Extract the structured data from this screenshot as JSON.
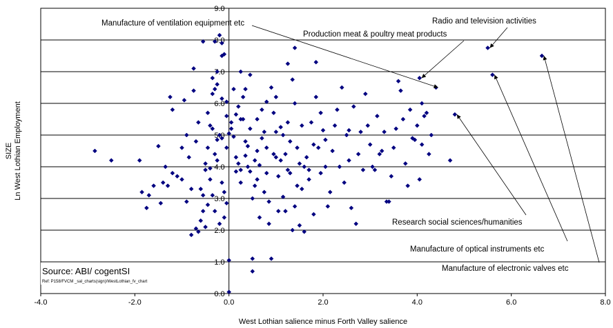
{
  "chart_data": {
    "type": "scatter",
    "title": "",
    "xlabel": "West Lothian salience minus Forth Valley salience",
    "ylabel_lines": [
      "SIZE",
      "Ln West Lothian Employment"
    ],
    "xlim": [
      -4,
      8
    ],
    "ylim": [
      0,
      9
    ],
    "x_ticks": [
      -4,
      -2,
      0,
      2,
      4,
      6,
      8
    ],
    "x_tick_labels": [
      "-4.0",
      "-2.0",
      "0.0",
      "2.0",
      "4.0",
      "6.0",
      "8.0"
    ],
    "y_ticks": [
      0,
      1,
      2,
      3,
      4,
      5,
      6,
      7,
      8,
      9
    ],
    "y_tick_labels": [
      "0.0",
      "1.0",
      "2.0",
      "3.0",
      "4.0",
      "5.0",
      "6.0",
      "7.0",
      "8.0",
      "9.0"
    ],
    "grid": {
      "horizontal": true,
      "vertical": false
    },
    "marker_color": "#000080",
    "source": "Source:  ABI/ cogentSI",
    "ref": "Ref: P158/FVCM _sal_charts(sign)/WestLothian_fv_chart",
    "annotations": [
      {
        "text": "Manufacture of ventilation equipment etc",
        "point": [
          4.4,
          6.5
        ]
      },
      {
        "text": "Production meat & poultry meat products",
        "point": [
          4.05,
          6.8
        ]
      },
      {
        "text": "Radio and television activities",
        "point": [
          5.5,
          7.75
        ]
      },
      {
        "text": "Research social sciences/humanities",
        "point": [
          4.8,
          5.65
        ]
      },
      {
        "text": "Manufacture of optical instruments etc",
        "point": [
          5.6,
          6.9
        ]
      },
      {
        "text": "Manufacture of electronic valves etc",
        "point": [
          6.65,
          7.5
        ]
      }
    ],
    "points": [
      [
        -2.85,
        4.5
      ],
      [
        -2.5,
        4.2
      ],
      [
        -1.9,
        4.2
      ],
      [
        -1.85,
        3.2
      ],
      [
        -1.75,
        2.7
      ],
      [
        -1.7,
        3.1
      ],
      [
        -1.6,
        3.4
      ],
      [
        -1.5,
        4.65
      ],
      [
        -1.45,
        2.85
      ],
      [
        -1.4,
        3.5
      ],
      [
        -1.35,
        4.0
      ],
      [
        -1.3,
        3.4
      ],
      [
        -1.25,
        6.2
      ],
      [
        -1.2,
        5.8
      ],
      [
        -1.1,
        3.7
      ],
      [
        -1.0,
        4.6
      ],
      [
        -0.95,
        6.1
      ],
      [
        -0.9,
        5.0
      ],
      [
        -0.85,
        4.3
      ],
      [
        -0.8,
        3.3
      ],
      [
        -0.75,
        6.4
      ],
      [
        -0.7,
        4.8
      ],
      [
        -0.65,
        5.4
      ],
      [
        -0.6,
        2.3
      ],
      [
        -0.55,
        2.6
      ],
      [
        -0.5,
        3.9
      ],
      [
        -0.45,
        4.6
      ],
      [
        -0.4,
        5.3
      ],
      [
        -0.35,
        3.1
      ],
      [
        -0.3,
        6.45
      ],
      [
        -0.25,
        4.2
      ],
      [
        -0.2,
        5.0
      ],
      [
        -0.15,
        3.5
      ],
      [
        -0.1,
        2.4
      ],
      [
        -0.05,
        5.6
      ],
      [
        -1.0,
        3.6
      ],
      [
        -1.2,
        3.8
      ],
      [
        -0.9,
        2.9
      ],
      [
        -0.8,
        1.85
      ],
      [
        -0.7,
        2.05
      ],
      [
        -0.65,
        1.95
      ],
      [
        -0.6,
        3.3
      ],
      [
        -0.5,
        2.1
      ],
      [
        -0.4,
        3.6
      ],
      [
        -0.3,
        2.6
      ],
      [
        -0.2,
        2.2
      ],
      [
        -0.1,
        3.2
      ],
      [
        -0.05,
        2.85
      ],
      [
        -0.35,
        6.8
      ],
      [
        -0.25,
        7.0
      ],
      [
        -0.15,
        7.5
      ],
      [
        -0.55,
        7.95
      ],
      [
        -0.3,
        7.95
      ],
      [
        -0.15,
        7.9
      ],
      [
        -0.2,
        8.15
      ],
      [
        -0.1,
        7.55
      ],
      [
        -0.45,
        5.7
      ],
      [
        -0.75,
        7.1
      ],
      [
        -0.35,
        5.2
      ],
      [
        -0.25,
        4.85
      ],
      [
        -0.15,
        4.9
      ],
      [
        -0.05,
        4.6
      ],
      [
        -0.5,
        4.1
      ],
      [
        -0.4,
        3.95
      ],
      [
        -0.3,
        4.4
      ],
      [
        -0.45,
        2.8
      ],
      [
        -0.55,
        3.1
      ],
      [
        0.0,
        5.05
      ],
      [
        0.05,
        5.4
      ],
      [
        0.1,
        4.95
      ],
      [
        0.15,
        5.65
      ],
      [
        0.2,
        4.1
      ],
      [
        0.25,
        5.5
      ],
      [
        0.3,
        6.2
      ],
      [
        0.35,
        4.8
      ],
      [
        0.4,
        4.0
      ],
      [
        0.45,
        5.2
      ],
      [
        0.5,
        3.0
      ],
      [
        0.55,
        4.2
      ],
      [
        0.6,
        3.6
      ],
      [
        0.65,
        2.4
      ],
      [
        0.7,
        5.8
      ],
      [
        0.75,
        3.2
      ],
      [
        0.8,
        4.6
      ],
      [
        0.85,
        2.9
      ],
      [
        0.9,
        6.5
      ],
      [
        0.95,
        4.4
      ],
      [
        1.0,
        5.1
      ],
      [
        1.05,
        3.7
      ],
      [
        1.1,
        4.2
      ],
      [
        1.15,
        5.0
      ],
      [
        1.2,
        2.6
      ],
      [
        1.25,
        3.9
      ],
      [
        1.3,
        4.8
      ],
      [
        1.35,
        2.0
      ],
      [
        1.4,
        6.0
      ],
      [
        1.45,
        3.4
      ],
      [
        1.5,
        4.1
      ],
      [
        1.55,
        5.3
      ],
      [
        1.6,
        1.95
      ],
      [
        1.65,
        4.3
      ],
      [
        1.7,
        3.6
      ],
      [
        1.75,
        5.4
      ],
      [
        1.8,
        2.5
      ],
      [
        1.85,
        6.2
      ],
      [
        1.9,
        4.6
      ],
      [
        1.95,
        3.8
      ],
      [
        2.0,
        5.15
      ],
      [
        2.05,
        4.0
      ],
      [
        2.1,
        2.75
      ],
      [
        2.2,
        4.5
      ],
      [
        2.3,
        5.8
      ],
      [
        2.4,
        6.5
      ],
      [
        2.5,
        5.0
      ],
      [
        2.55,
        4.2
      ],
      [
        2.6,
        2.7
      ],
      [
        2.7,
        2.2
      ],
      [
        2.8,
        5.1
      ],
      [
        2.9,
        6.3
      ],
      [
        3.0,
        4.7
      ],
      [
        3.1,
        3.9
      ],
      [
        3.2,
        4.4
      ],
      [
        3.3,
        5.1
      ],
      [
        3.4,
        2.9
      ],
      [
        3.5,
        4.6
      ],
      [
        3.6,
        6.7
      ],
      [
        3.7,
        5.5
      ],
      [
        3.8,
        3.4
      ],
      [
        3.9,
        4.9
      ],
      [
        4.0,
        5.3
      ],
      [
        4.1,
        6.0
      ],
      [
        4.2,
        5.7
      ],
      [
        4.25,
        4.4
      ],
      [
        0.05,
        5.2
      ],
      [
        0.15,
        4.3
      ],
      [
        0.25,
        3.5
      ],
      [
        0.35,
        6.45
      ],
      [
        0.45,
        3.85
      ],
      [
        0.55,
        3.4
      ],
      [
        0.65,
        4.05
      ],
      [
        0.75,
        5.1
      ],
      [
        0.85,
        2.2
      ],
      [
        0.95,
        5.7
      ],
      [
        1.05,
        2.6
      ],
      [
        1.15,
        3.05
      ],
      [
        1.25,
        5.4
      ],
      [
        1.35,
        6.75
      ],
      [
        1.45,
        4.6
      ],
      [
        1.55,
        3.3
      ],
      [
        0.5,
        1.1
      ],
      [
        0.9,
        1.1
      ],
      [
        0.5,
        0.7
      ],
      [
        0.0,
        1.05
      ],
      [
        0.0,
        0.05
      ],
      [
        1.4,
        7.75
      ],
      [
        1.25,
        7.25
      ],
      [
        1.85,
        7.3
      ],
      [
        0.25,
        7.0
      ],
      [
        0.45,
        6.9
      ],
      [
        0.6,
        4.5
      ],
      [
        0.7,
        4.9
      ],
      [
        0.8,
        3.8
      ],
      [
        1.0,
        4.3
      ],
      [
        1.1,
        5.25
      ],
      [
        1.2,
        4.4
      ],
      [
        1.3,
        3.8
      ],
      [
        1.4,
        2.75
      ],
      [
        1.5,
        2.15
      ],
      [
        1.6,
        4.0
      ],
      [
        1.7,
        3.9
      ],
      [
        1.8,
        4.7
      ],
      [
        1.95,
        5.7
      ],
      [
        2.05,
        4.85
      ],
      [
        2.15,
        3.2
      ],
      [
        2.25,
        5.3
      ],
      [
        2.35,
        4.0
      ],
      [
        2.45,
        3.5
      ],
      [
        2.55,
        5.15
      ],
      [
        2.65,
        5.9
      ],
      [
        2.75,
        4.4
      ],
      [
        2.85,
        3.9
      ],
      [
        2.95,
        5.3
      ],
      [
        3.05,
        4.0
      ],
      [
        3.15,
        5.6
      ],
      [
        3.25,
        4.5
      ],
      [
        3.35,
        2.9
      ],
      [
        3.45,
        3.7
      ],
      [
        3.55,
        5.2
      ],
      [
        3.65,
        6.4
      ],
      [
        3.75,
        4.1
      ],
      [
        3.85,
        5.8
      ],
      [
        3.95,
        4.85
      ],
      [
        4.05,
        3.6
      ],
      [
        4.15,
        5.6
      ],
      [
        4.3,
        5.0
      ],
      [
        4.4,
        6.5
      ],
      [
        4.05,
        6.8
      ],
      [
        5.5,
        7.75
      ],
      [
        4.8,
        5.65
      ],
      [
        5.6,
        6.9
      ],
      [
        6.65,
        7.5
      ],
      [
        4.7,
        4.2
      ],
      [
        4.1,
        4.7
      ],
      [
        -0.05,
        6.05
      ],
      [
        0.1,
        6.45
      ],
      [
        0.2,
        5.9
      ],
      [
        0.3,
        5.5
      ],
      [
        0.4,
        4.65
      ],
      [
        0.6,
        5.5
      ],
      [
        0.8,
        6.05
      ],
      [
        1.0,
        6.2
      ],
      [
        -0.15,
        6.15
      ],
      [
        -0.25,
        6.6
      ],
      [
        -0.35,
        6.3
      ],
      [
        0.15,
        3.85
      ],
      [
        0.25,
        3.9
      ],
      [
        0.35,
        4.35
      ]
    ]
  }
}
